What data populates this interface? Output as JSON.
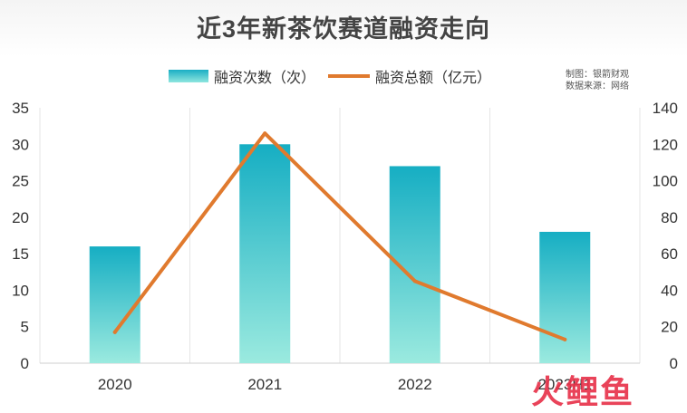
{
  "title": "近3年新茶饮赛道融资走向",
  "legend": {
    "bars": "融资次数（次）",
    "line": "融资总额（亿元）"
  },
  "credit": {
    "line1": "制图：银箭财观",
    "line2": "数据来源：网络"
  },
  "watermark": "火鲤鱼",
  "colors": {
    "bar_top": "#16aec3",
    "bar_bottom": "#9beadf",
    "line": "#e07a2e",
    "grid": "#e6e6e6",
    "title": "#444444"
  },
  "chart_data": {
    "type": "bar+line",
    "categories": [
      "2020",
      "2021",
      "2022",
      "2023H1"
    ],
    "series": [
      {
        "name": "融资次数（次）",
        "type": "bar",
        "axis": "left",
        "values": [
          16,
          30,
          27,
          18
        ]
      },
      {
        "name": "融资总额（亿元）",
        "type": "line",
        "axis": "right",
        "values": [
          17,
          126,
          45,
          13
        ]
      }
    ],
    "y_left": {
      "min": 0,
      "max": 35,
      "ticks": [
        0,
        5,
        10,
        15,
        20,
        25,
        30,
        35
      ]
    },
    "y_right": {
      "min": 0,
      "max": 140,
      "ticks": [
        0,
        20,
        40,
        60,
        80,
        100,
        120,
        140
      ]
    },
    "grid": "vertical",
    "legend_position": "top-center"
  }
}
